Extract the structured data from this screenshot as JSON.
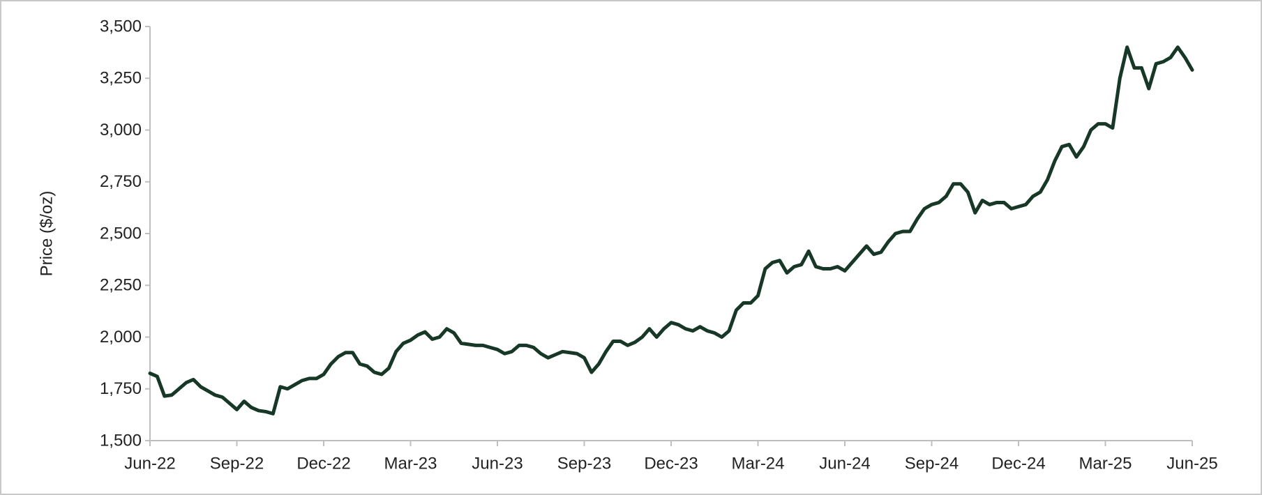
{
  "chart_data": {
    "type": "line",
    "y_label": "Price ($/oz)",
    "categories": [
      "Jun-22",
      null,
      null,
      null,
      null,
      null,
      null,
      null,
      null,
      null,
      null,
      null,
      "Sep-22",
      null,
      null,
      null,
      null,
      null,
      null,
      null,
      null,
      null,
      null,
      null,
      "Dec-22",
      null,
      null,
      null,
      null,
      null,
      null,
      null,
      null,
      null,
      null,
      null,
      "Mar-23",
      null,
      null,
      null,
      null,
      null,
      null,
      null,
      null,
      null,
      null,
      null,
      "Jun-23",
      null,
      null,
      null,
      null,
      null,
      null,
      null,
      null,
      null,
      null,
      null,
      "Sep-23",
      null,
      null,
      null,
      null,
      null,
      null,
      null,
      null,
      null,
      null,
      null,
      "Dec-23",
      null,
      null,
      null,
      null,
      null,
      null,
      null,
      null,
      null,
      null,
      null,
      "Mar-24",
      null,
      null,
      null,
      null,
      null,
      null,
      null,
      null,
      null,
      null,
      null,
      "Jun-24",
      null,
      null,
      null,
      null,
      null,
      null,
      null,
      null,
      null,
      null,
      null,
      "Sep-24",
      null,
      null,
      null,
      null,
      null,
      null,
      null,
      null,
      null,
      null,
      null,
      "Dec-24",
      null,
      null,
      null,
      null,
      null,
      null,
      null,
      null,
      null,
      null,
      null,
      "Mar-25",
      null,
      null,
      null,
      null,
      null,
      null,
      null,
      null,
      null,
      null,
      null,
      "Jun-25"
    ],
    "series": [
      {
        "color": "#173826",
        "values": [
          1825,
          1810,
          1715,
          1720,
          1750,
          1780,
          1795,
          1760,
          1740,
          1720,
          1710,
          1680,
          1650,
          1690,
          1660,
          1645,
          1640,
          1630,
          1760,
          1750,
          1770,
          1790,
          1800,
          1800,
          1820,
          1870,
          1905,
          1925,
          1925,
          1870,
          1860,
          1830,
          1820,
          1850,
          1930,
          1970,
          1985,
          2010,
          2025,
          1990,
          2000,
          2040,
          2020,
          1970,
          1965,
          1960,
          1960,
          1950,
          1940,
          1920,
          1930,
          1960,
          1960,
          1950,
          1920,
          1900,
          1915,
          1930,
          1925,
          1920,
          1900,
          1830,
          1870,
          1930,
          1980,
          1980,
          1960,
          1975,
          2000,
          2040,
          2000,
          2040,
          2070,
          2060,
          2040,
          2030,
          2050,
          2030,
          2020,
          2000,
          2030,
          2130,
          2165,
          2165,
          2200,
          2330,
          2360,
          2370,
          2310,
          2340,
          2350,
          2415,
          2340,
          2330,
          2330,
          2340,
          2320,
          2360,
          2400,
          2440,
          2400,
          2410,
          2460,
          2500,
          2510,
          2510,
          2570,
          2620,
          2640,
          2650,
          2680,
          2740,
          2740,
          2700,
          2600,
          2660,
          2640,
          2650,
          2650,
          2620,
          2630,
          2640,
          2680,
          2700,
          2760,
          2850,
          2920,
          2930,
          2870,
          2920,
          3000,
          3030,
          3030,
          3010,
          3250,
          3400,
          3300,
          3300,
          3200,
          3320,
          3330,
          3350,
          3400,
          3350,
          3290
        ]
      }
    ],
    "ylim": [
      1500,
      3500
    ],
    "yticks": [
      {
        "value": 1500,
        "label": "1,500"
      },
      {
        "value": 1750,
        "label": "1,750"
      },
      {
        "value": 2000,
        "label": "2,000"
      },
      {
        "value": 2250,
        "label": "2,250"
      },
      {
        "value": 2500,
        "label": "2,500"
      },
      {
        "value": 2750,
        "label": "2,750"
      },
      {
        "value": 3000,
        "label": "3,000"
      },
      {
        "value": 3250,
        "label": "3,250"
      },
      {
        "value": 3500,
        "label": "3,500"
      }
    ],
    "grid": false
  }
}
